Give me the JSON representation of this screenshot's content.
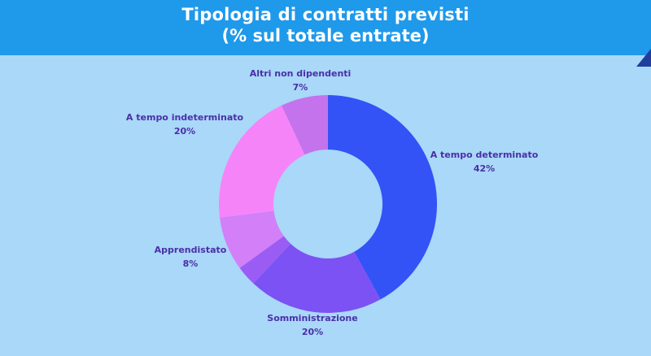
{
  "header": {
    "title_line1": "Tipologia di contratti previsti",
    "title_line2": "(% sul totale entrate)"
  },
  "colors": {
    "background": "#a9d8f8",
    "header": "#1f99ea",
    "label_text": "#4b2fa8"
  },
  "chart_data": {
    "type": "pie",
    "donut": true,
    "slices": [
      {
        "name": "A tempo determinato",
        "value": 42,
        "value_label": "42%",
        "color": "#3353f7"
      },
      {
        "name": "Somministrazione",
        "value": 20,
        "value_label": "20%",
        "color": "#7c52f4"
      },
      {
        "name": "",
        "value": 3,
        "value_label": "",
        "color": "#9b5cf4"
      },
      {
        "name": "Apprendistato",
        "value": 8,
        "value_label": "8%",
        "color": "#d27ff8"
      },
      {
        "name": "A tempo indeterminato",
        "value": 20,
        "value_label": "20%",
        "color": "#f684f9"
      },
      {
        "name": "Altri non dipendenti",
        "value": 7,
        "value_label": "7%",
        "color": "#c473ec"
      }
    ]
  }
}
